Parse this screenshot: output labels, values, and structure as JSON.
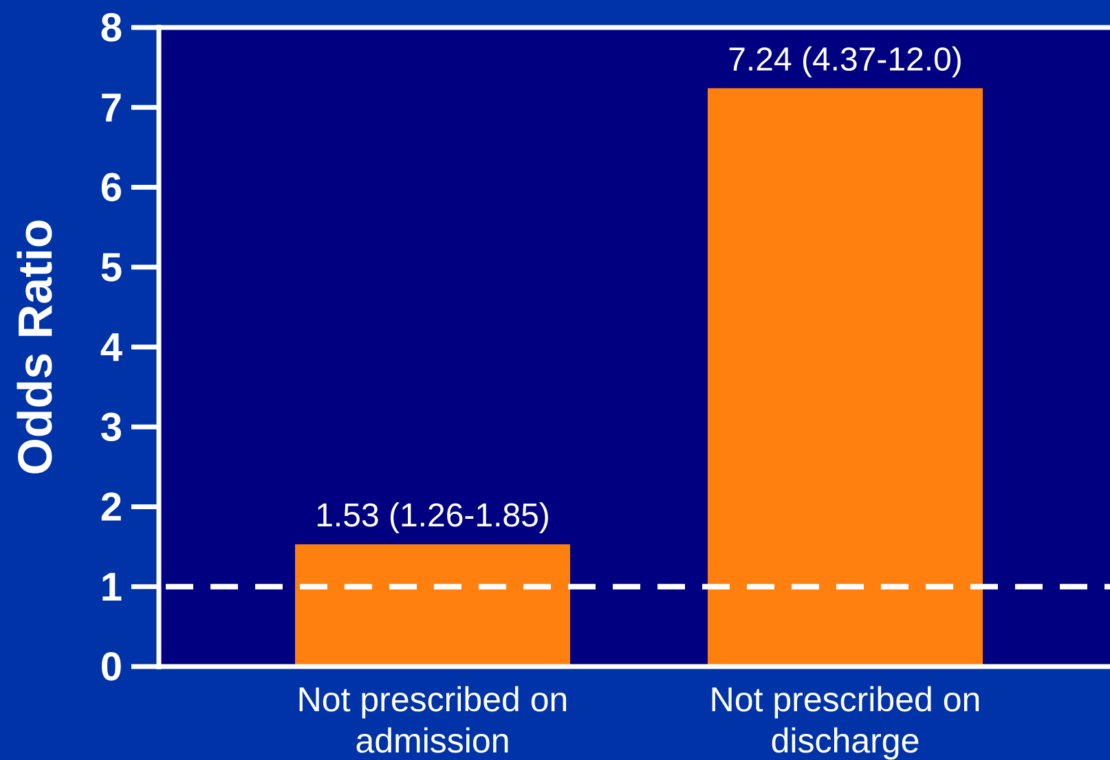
{
  "chart_data": {
    "type": "bar",
    "ylabel": "Odds Ratio",
    "xlabel": "",
    "ylim": [
      0,
      8
    ],
    "yticks": [
      0,
      1,
      2,
      3,
      4,
      5,
      6,
      7,
      8
    ],
    "categories": [
      [
        "Not prescribed on",
        "admission"
      ],
      [
        "Not prescribed on",
        "discharge"
      ]
    ],
    "values": [
      1.53,
      7.24
    ],
    "data_labels": [
      "1.53 (1.26-1.85)",
      "7.24 (4.37-12.0)"
    ],
    "reference_line": 1,
    "grid": false,
    "legend": "none"
  },
  "colors": {
    "background": "#0033A8",
    "plot_area": "#000080",
    "bar": "#FF800E",
    "axis": "#FFFFFF",
    "reference_line": "#FFFFFF"
  }
}
